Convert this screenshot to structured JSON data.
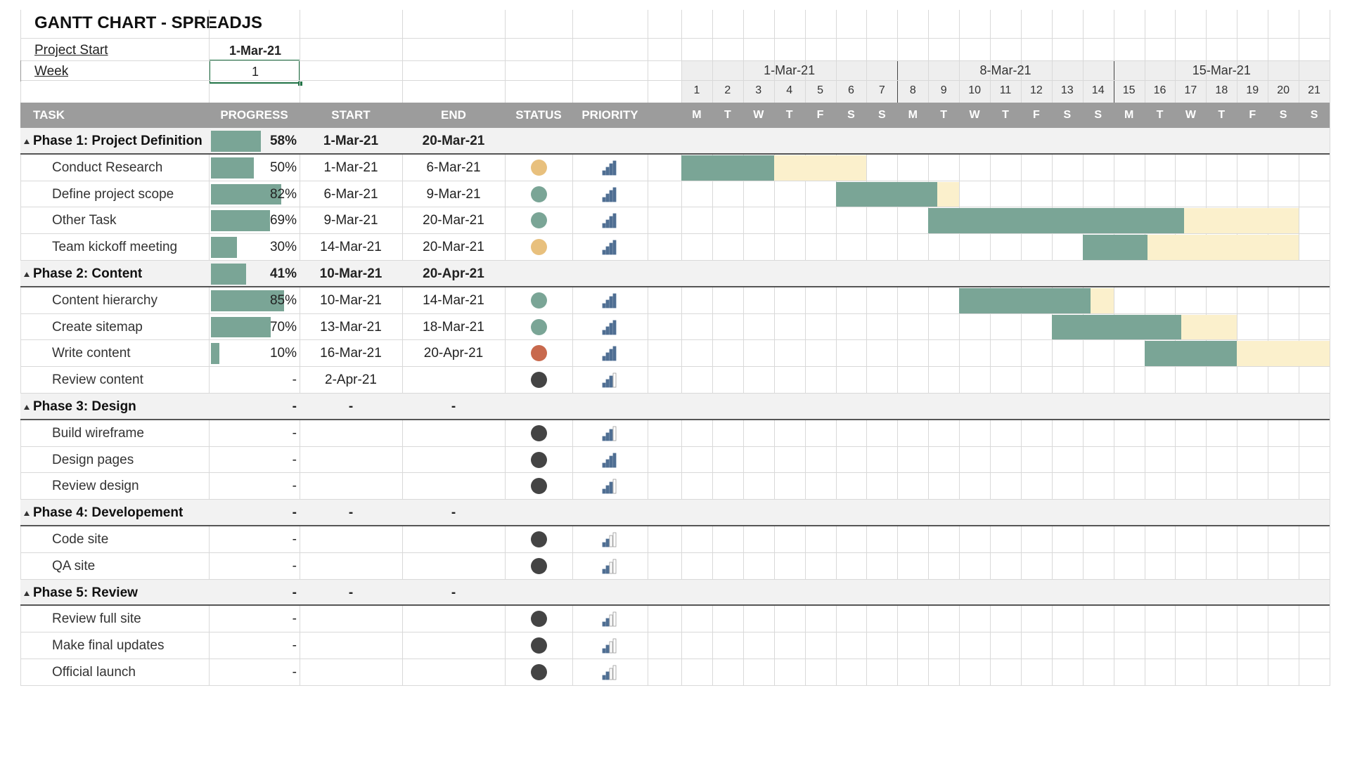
{
  "title": "GANTT CHART - SPREADJS",
  "project_start_label": "Project Start",
  "project_start_value": "1-Mar-21",
  "week_label": "Week",
  "week_value": "1",
  "columns": {
    "task": "TASK",
    "progress": "PROGRESS",
    "start": "START",
    "end": "END",
    "status": "STATUS",
    "priority": "PRIORITY"
  },
  "week_headers": [
    "1-Mar-21",
    "8-Mar-21",
    "15-Mar-21"
  ],
  "day_numbers": [
    "1",
    "2",
    "3",
    "4",
    "5",
    "6",
    "7",
    "8",
    "9",
    "10",
    "11",
    "12",
    "13",
    "14",
    "15",
    "16",
    "17",
    "18",
    "19",
    "20",
    "21"
  ],
  "day_letters": [
    "M",
    "T",
    "W",
    "T",
    "F",
    "S",
    "S",
    "M",
    "T",
    "W",
    "T",
    "F",
    "S",
    "S",
    "M",
    "T",
    "W",
    "T",
    "F",
    "S",
    "S"
  ],
  "colors": {
    "header": "#9c9c9c",
    "bar": "#7aa596",
    "remaining": "#fbf0cc",
    "status_done": "#7aa596",
    "status_pending": "#e8c07d",
    "status_late": "#c8694d",
    "status_none": "#444444",
    "priority": "#4f6f93"
  },
  "rows": [
    {
      "type": "phase",
      "name": "Phase 1: Project Definition",
      "progress_text": "58%",
      "progress": 0.58,
      "start": "1-Mar-21",
      "end": "20-Mar-21"
    },
    {
      "type": "task",
      "name": "Conduct Research",
      "progress_text": "50%",
      "progress": 0.5,
      "start": "1-Mar-21",
      "end": "6-Mar-21",
      "status": "pending",
      "priority": 3,
      "gantt": {
        "start": 1,
        "end": 6,
        "progress": 0.5
      }
    },
    {
      "type": "task",
      "name": "Define project scope",
      "progress_text": "82%",
      "progress": 0.82,
      "start": "6-Mar-21",
      "end": "9-Mar-21",
      "status": "done",
      "priority": 3,
      "gantt": {
        "start": 6,
        "end": 9,
        "progress": 0.82
      }
    },
    {
      "type": "task",
      "name": "Other Task",
      "progress_text": "69%",
      "progress": 0.69,
      "start": "9-Mar-21",
      "end": "20-Mar-21",
      "status": "done",
      "priority": 3,
      "gantt": {
        "start": 9,
        "end": 20,
        "progress": 0.69
      }
    },
    {
      "type": "task",
      "name": "Team kickoff meeting",
      "progress_text": "30%",
      "progress": 0.3,
      "start": "14-Mar-21",
      "end": "20-Mar-21",
      "status": "pending",
      "priority": 3,
      "gantt": {
        "start": 14,
        "end": 20,
        "progress": 0.3
      }
    },
    {
      "type": "phase",
      "name": "Phase 2:  Content",
      "progress_text": "41%",
      "progress": 0.41,
      "start": "10-Mar-21",
      "end": "20-Apr-21"
    },
    {
      "type": "task",
      "name": "Content hierarchy",
      "progress_text": "85%",
      "progress": 0.85,
      "start": "10-Mar-21",
      "end": "14-Mar-21",
      "status": "done",
      "priority": 3,
      "gantt": {
        "start": 10,
        "end": 14,
        "progress": 0.85
      }
    },
    {
      "type": "task",
      "name": "Create sitemap",
      "progress_text": "70%",
      "progress": 0.7,
      "start": "13-Mar-21",
      "end": "18-Mar-21",
      "status": "done",
      "priority": 3,
      "gantt": {
        "start": 13,
        "end": 18,
        "progress": 0.7
      }
    },
    {
      "type": "task",
      "name": "Write content",
      "progress_text": "10%",
      "progress": 0.1,
      "start": "16-Mar-21",
      "end": "20-Apr-21",
      "status": "late",
      "priority": 3,
      "gantt": {
        "start": 16,
        "end": 21,
        "progress": 0.5
      }
    },
    {
      "type": "task",
      "name": "Review content",
      "progress_text": "-",
      "progress": 0,
      "start": "2-Apr-21",
      "end": "",
      "status": "none",
      "priority": 2
    },
    {
      "type": "phase",
      "name": "Phase 3: Design",
      "progress_text": "-",
      "progress": 0,
      "start": "-",
      "end": "-"
    },
    {
      "type": "task",
      "name": "Build wireframe",
      "progress_text": "-",
      "progress": 0,
      "start": "",
      "end": "",
      "status": "none",
      "priority": 2
    },
    {
      "type": "task",
      "name": "Design pages",
      "progress_text": "-",
      "progress": 0,
      "start": "",
      "end": "",
      "status": "none",
      "priority": 3
    },
    {
      "type": "task",
      "name": "Review design",
      "progress_text": "-",
      "progress": 0,
      "start": "",
      "end": "",
      "status": "none",
      "priority": 2
    },
    {
      "type": "phase",
      "name": "Phase 4: Developement",
      "progress_text": "-",
      "progress": 0,
      "start": "-",
      "end": "-"
    },
    {
      "type": "task",
      "name": "Code site",
      "progress_text": "-",
      "progress": 0,
      "start": "",
      "end": "",
      "status": "none",
      "priority": 1
    },
    {
      "type": "task",
      "name": "QA site",
      "progress_text": "-",
      "progress": 0,
      "start": "",
      "end": "",
      "status": "none",
      "priority": 1
    },
    {
      "type": "phase",
      "name": "Phase 5: Review",
      "progress_text": "-",
      "progress": 0,
      "start": "-",
      "end": "-"
    },
    {
      "type": "task",
      "name": "Review full site",
      "progress_text": "-",
      "progress": 0,
      "start": "",
      "end": "",
      "status": "none",
      "priority": 1
    },
    {
      "type": "task",
      "name": "Make final updates",
      "progress_text": "-",
      "progress": 0,
      "start": "",
      "end": "",
      "status": "none",
      "priority": 1
    },
    {
      "type": "task",
      "name": "Official launch",
      "progress_text": "-",
      "progress": 0,
      "start": "",
      "end": "",
      "status": "none",
      "priority": 1
    }
  ]
}
